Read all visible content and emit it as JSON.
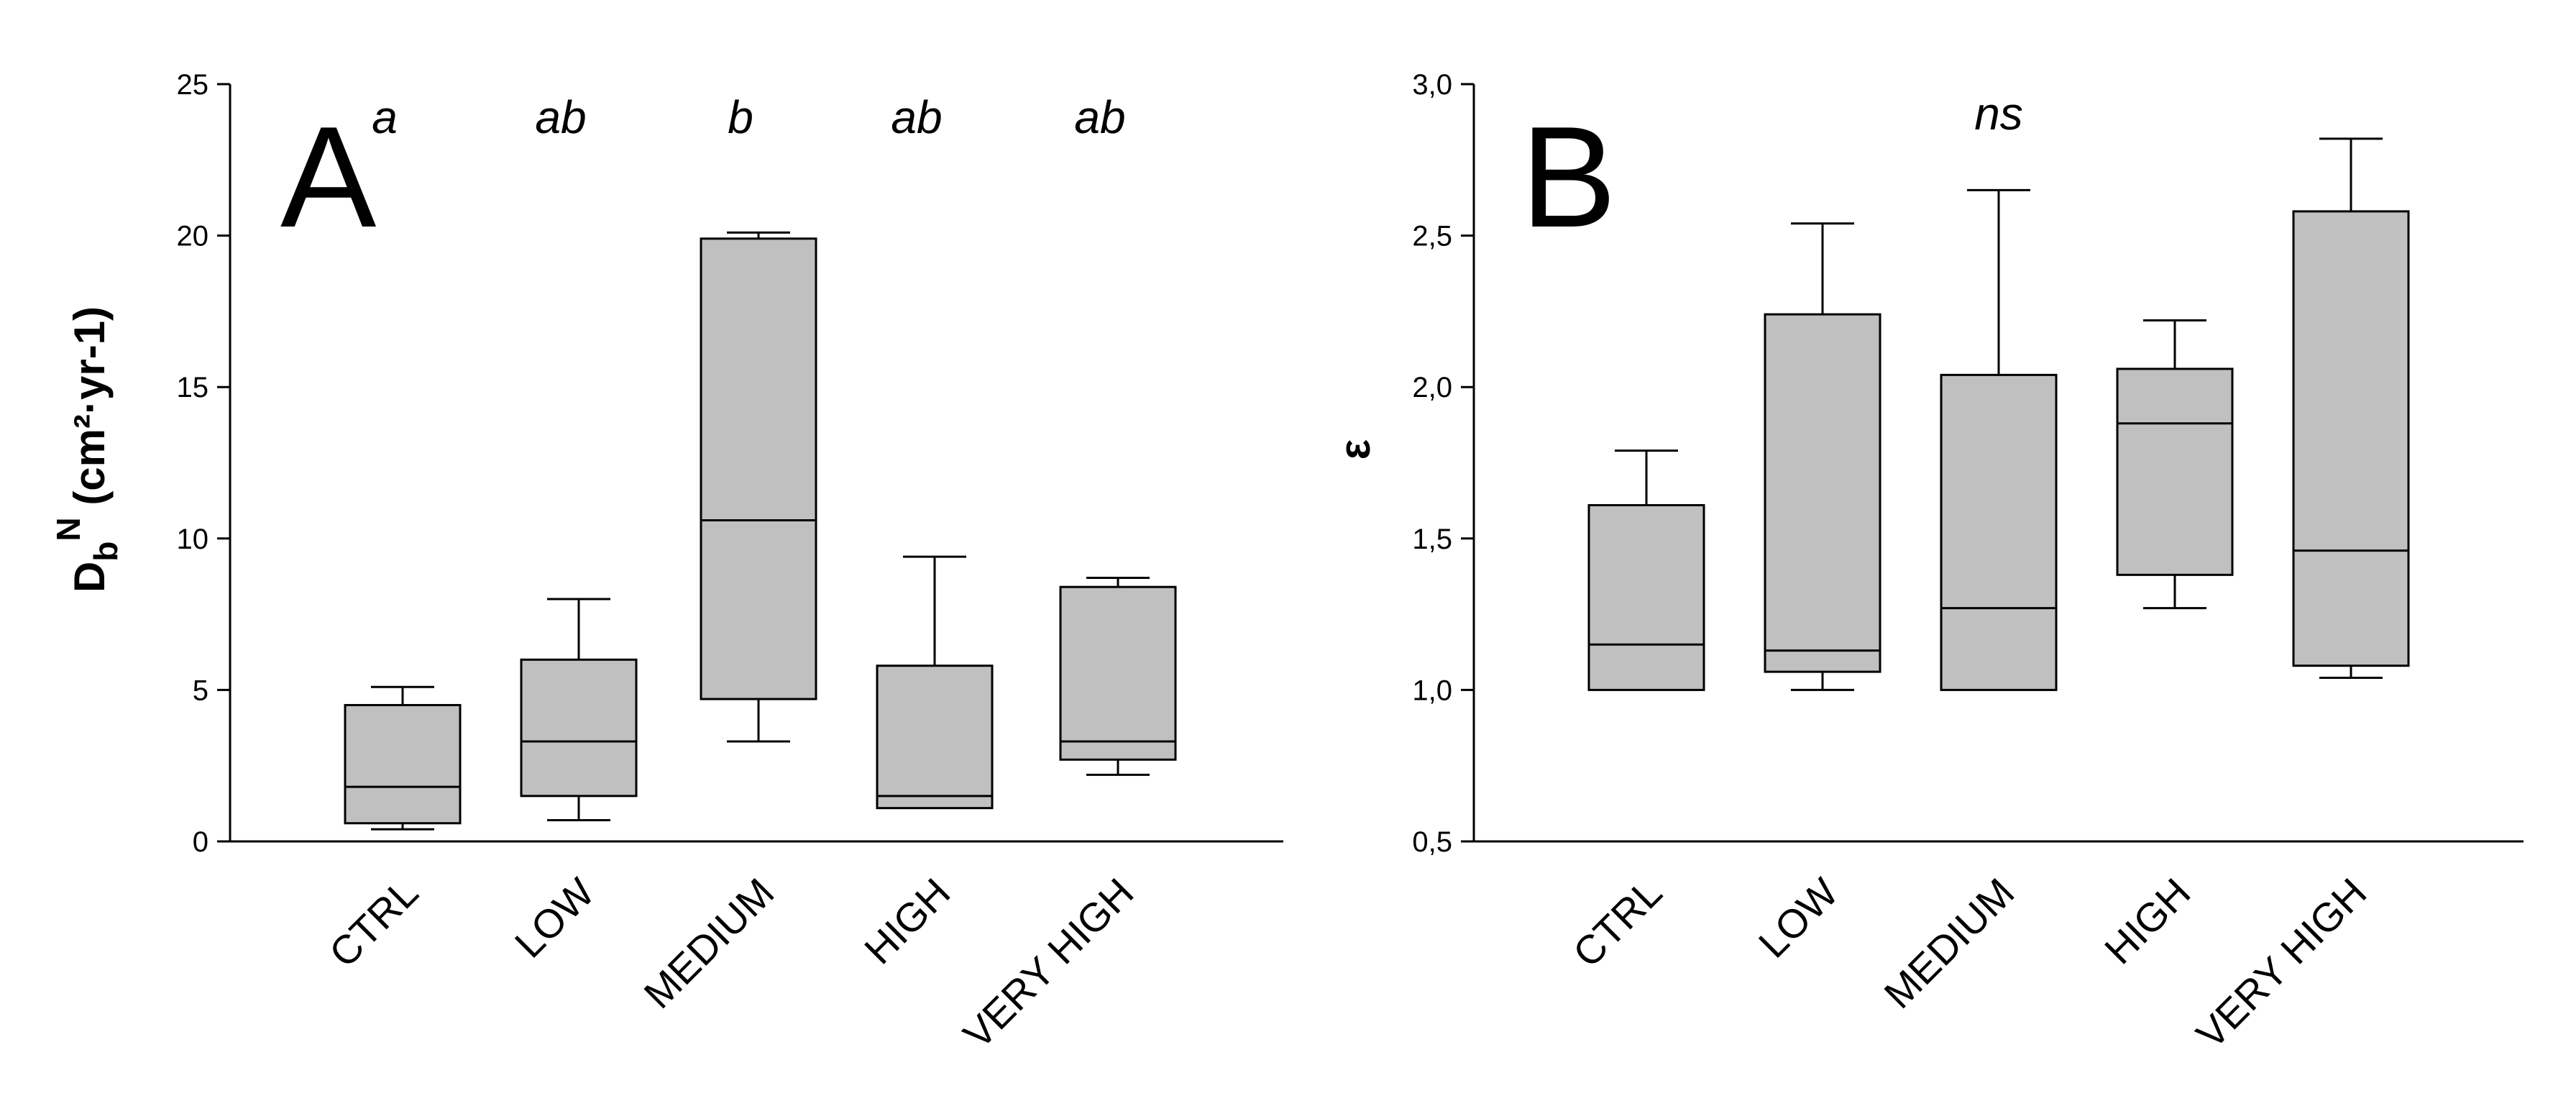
{
  "chart_data": [
    {
      "type": "box",
      "panel_label": "A",
      "ylabel_main": "D",
      "ylabel_sub": "b",
      "ylabel_sup": "N",
      "ylabel_rest": " (cm²·yr-1)",
      "ylim": [
        0,
        25
      ],
      "yticks": [
        "0",
        "5",
        "10",
        "15",
        "20",
        "25"
      ],
      "ytick_values": [
        0,
        5,
        10,
        15,
        20,
        25
      ],
      "categories": [
        "CTRL",
        "LOW",
        "MEDIUM",
        "HIGH",
        "VERY HIGH"
      ],
      "significance": [
        "a",
        "ab",
        "b",
        "ab",
        "ab"
      ],
      "box_color": "#c0c0c0",
      "boxes": [
        {
          "whisker_low": 0.4,
          "q1": 0.6,
          "median": 1.8,
          "q3": 4.5,
          "whisker_high": 5.1
        },
        {
          "whisker_low": 0.7,
          "q1": 1.5,
          "median": 3.3,
          "q3": 6.0,
          "whisker_high": 8.0
        },
        {
          "whisker_low": 3.3,
          "q1": 4.7,
          "median": 10.6,
          "q3": 19.9,
          "whisker_high": 20.1
        },
        {
          "whisker_low": 1.1,
          "q1": 1.1,
          "median": 1.5,
          "q3": 5.8,
          "whisker_high": 9.4
        },
        {
          "whisker_low": 2.2,
          "q1": 2.7,
          "median": 3.3,
          "q3": 8.4,
          "whisker_high": 8.7
        }
      ]
    },
    {
      "type": "box",
      "panel_label": "B",
      "ylabel": "ε",
      "ylim": [
        0.5,
        3.0
      ],
      "yticks": [
        "0,5",
        "1,0",
        "1,5",
        "2,0",
        "2,5",
        "3,0"
      ],
      "ytick_values": [
        0.5,
        1.0,
        1.5,
        2.0,
        2.5,
        3.0
      ],
      "categories": [
        "CTRL",
        "LOW",
        "MEDIUM",
        "HIGH",
        "VERY HIGH"
      ],
      "significance_label": "ns",
      "box_color": "#c0c0c0",
      "boxes": [
        {
          "whisker_low": 1.0,
          "q1": 1.0,
          "median": 1.15,
          "q3": 1.61,
          "whisker_high": 1.79
        },
        {
          "whisker_low": 1.0,
          "q1": 1.06,
          "median": 1.13,
          "q3": 2.24,
          "whisker_high": 2.54
        },
        {
          "whisker_low": 1.0,
          "q1": 1.0,
          "median": 1.27,
          "q3": 2.04,
          "whisker_high": 2.65
        },
        {
          "whisker_low": 1.27,
          "q1": 1.38,
          "median": 1.88,
          "q3": 2.06,
          "whisker_high": 2.22
        },
        {
          "whisker_low": 1.04,
          "q1": 1.08,
          "median": 1.46,
          "q3": 2.58,
          "whisker_high": 2.82
        }
      ]
    }
  ]
}
